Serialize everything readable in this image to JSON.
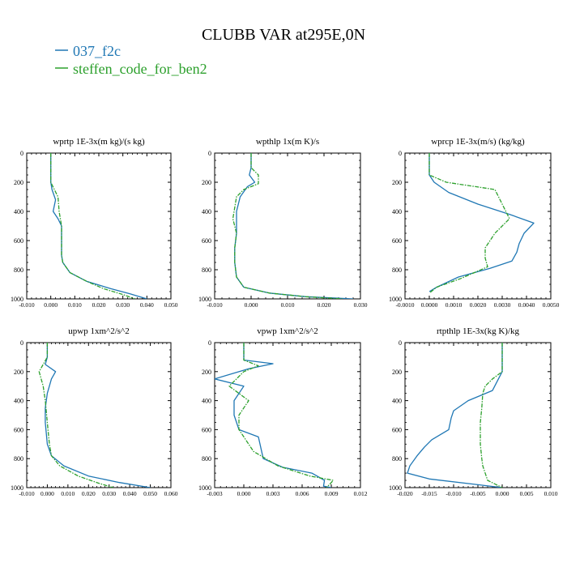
{
  "title": "CLUBB VAR at295E,0N",
  "legend": [
    {
      "name": "037_f2c",
      "color": "#1f77b4"
    },
    {
      "name": "steffen_code_for_ben2",
      "color": "#2ca02c"
    }
  ],
  "chart_data": [
    {
      "type": "line",
      "title": "wprtp   1E-3x(m kg)/(s kg)",
      "xlim": [
        -0.01,
        0.05
      ],
      "ylim": [
        1000,
        0
      ],
      "xticks": [
        "-0.010",
        "0.000",
        "0.010",
        "0.020",
        "0.030",
        "0.040",
        "0.050"
      ],
      "yticks": [
        "0",
        "200",
        "400",
        "600",
        "800",
        "1000"
      ],
      "series": [
        {
          "name": "037_f2c",
          "x": [
            0.0,
            0.0,
            0.0,
            0.0005,
            0.002,
            0.001,
            0.003,
            0.0045,
            0.0045,
            0.0045,
            0.005,
            0.008,
            0.015,
            0.025,
            0.033,
            0.04
          ],
          "y": [
            0,
            100,
            200,
            250,
            320,
            400,
            450,
            500,
            600,
            700,
            750,
            820,
            880,
            930,
            965,
            1000
          ]
        },
        {
          "name": "steffen_code_for_ben2",
          "x": [
            0.0,
            0.0,
            0.0,
            0.0015,
            0.003,
            0.0035,
            0.0045,
            0.0045,
            0.0045,
            0.005,
            0.008,
            0.015,
            0.022,
            0.03,
            0.035
          ],
          "y": [
            0,
            100,
            200,
            250,
            300,
            400,
            500,
            600,
            700,
            750,
            820,
            880,
            930,
            970,
            1000
          ]
        }
      ]
    },
    {
      "type": "line",
      "title": "wpthlp   1x(m K)/s",
      "xlim": [
        -0.01,
        0.03
      ],
      "ylim": [
        1000,
        0
      ],
      "xticks": [
        "-0.010",
        "0.000",
        "0.010",
        "0.020",
        "0.030"
      ],
      "yticks": [
        "0",
        "200",
        "400",
        "600",
        "800",
        "1000"
      ],
      "series": [
        {
          "name": "037_f2c",
          "x": [
            0.0,
            0.0,
            -0.0005,
            0.001,
            -0.001,
            -0.003,
            -0.004,
            -0.004,
            -0.0045,
            -0.0045,
            -0.004,
            -0.002,
            0.005,
            0.015,
            0.028
          ],
          "y": [
            0,
            100,
            150,
            200,
            230,
            300,
            400,
            550,
            650,
            750,
            850,
            920,
            960,
            985,
            1000
          ]
        },
        {
          "name": "steffen_code_for_ben2",
          "x": [
            0.0,
            0.0,
            0.002,
            0.002,
            -0.002,
            -0.004,
            -0.005,
            -0.004,
            -0.0045,
            -0.0045,
            -0.004,
            -0.002,
            0.005,
            0.015,
            0.025
          ],
          "y": [
            0,
            100,
            150,
            210,
            250,
            300,
            450,
            550,
            650,
            750,
            850,
            920,
            960,
            985,
            1000
          ]
        }
      ]
    },
    {
      "type": "line",
      "title": "wprcp   1E-3x(m/s) (kg/kg)",
      "xlim": [
        -0.001,
        0.005
      ],
      "ylim": [
        1000,
        0
      ],
      "xticks": [
        "-0.0010",
        "0.0000",
        "0.0010",
        "0.0020",
        "0.0030",
        "0.0040",
        "0.0050"
      ],
      "yticks": [
        "0",
        "200",
        "400",
        "600",
        "800",
        "1000"
      ],
      "series": [
        {
          "name": "037_f2c",
          "x": [
            0.0,
            0.0,
            0.0002,
            0.0008,
            0.002,
            0.0033,
            0.0043,
            0.0039,
            0.0037,
            0.0036,
            0.0034,
            0.0025,
            0.0012,
            0.0003,
            0.0
          ],
          "y": [
            0,
            150,
            200,
            270,
            350,
            420,
            480,
            550,
            620,
            680,
            740,
            790,
            850,
            920,
            950
          ]
        },
        {
          "name": "steffen_code_for_ben2",
          "x": [
            0.0,
            0.0,
            0.0007,
            0.0027,
            0.003,
            0.0033,
            0.0027,
            0.0023,
            0.0023,
            0.0024,
            0.0013,
            0.0003,
            0.0
          ],
          "y": [
            0,
            150,
            200,
            250,
            350,
            450,
            550,
            650,
            720,
            780,
            860,
            920,
            960
          ]
        }
      ]
    },
    {
      "type": "line",
      "title": "upwp   1xm^2/s^2",
      "xlim": [
        -0.01,
        0.06
      ],
      "ylim": [
        1000,
        0
      ],
      "xticks": [
        "-0.010",
        "0.000",
        "0.010",
        "0.020",
        "0.030",
        "0.040",
        "0.050",
        "0.060"
      ],
      "yticks": [
        "0",
        "200",
        "400",
        "600",
        "800",
        "1000"
      ],
      "series": [
        {
          "name": "037_f2c",
          "x": [
            0.0,
            0.0,
            -0.001,
            0.004,
            0.002,
            0.0,
            -0.001,
            -0.001,
            0.0,
            0.002,
            0.008,
            0.02,
            0.035,
            0.05
          ],
          "y": [
            0,
            100,
            150,
            200,
            250,
            350,
            450,
            550,
            700,
            780,
            850,
            920,
            965,
            1000
          ]
        },
        {
          "name": "steffen_code_for_ben2",
          "x": [
            0.0,
            0.0,
            -0.002,
            -0.004,
            -0.002,
            -0.001,
            0.0,
            0.001,
            0.002,
            0.006,
            0.015,
            0.025,
            0.032
          ],
          "y": [
            0,
            100,
            150,
            200,
            300,
            400,
            550,
            700,
            780,
            850,
            920,
            970,
            1000
          ]
        }
      ]
    },
    {
      "type": "line",
      "title": "vpwp   1xm^2/s^2",
      "xlim": [
        -0.003,
        0.012
      ],
      "ylim": [
        1000,
        0
      ],
      "xticks": [
        "-0.003",
        "0.000",
        "0.003",
        "0.006",
        "0.009",
        "0.012"
      ],
      "yticks": [
        "0",
        "200",
        "400",
        "600",
        "800",
        "1000"
      ],
      "series": [
        {
          "name": "037_f2c",
          "x": [
            0.0,
            0.0,
            0.003,
            0.0005,
            -0.003,
            0.0,
            -0.001,
            -0.001,
            -0.0005,
            0.0015,
            0.002,
            0.004,
            0.007,
            0.0083,
            0.0082,
            0.009
          ],
          "y": [
            0,
            120,
            145,
            180,
            250,
            300,
            400,
            500,
            600,
            650,
            800,
            860,
            900,
            950,
            990,
            1000
          ]
        },
        {
          "name": "steffen_code_for_ben2",
          "x": [
            0.0,
            0.0,
            0.0015,
            0.0,
            -0.0015,
            0.0005,
            -0.0005,
            -0.0005,
            0.001,
            0.0035,
            0.0068,
            0.0092,
            0.0088,
            0.0085
          ],
          "y": [
            0,
            120,
            160,
            200,
            300,
            400,
            500,
            600,
            750,
            850,
            920,
            950,
            980,
            1000
          ]
        }
      ]
    },
    {
      "type": "line",
      "title": "rtpthlp   1E-3x(kg K)/kg",
      "xlim": [
        -0.02,
        0.01
      ],
      "ylim": [
        1000,
        0
      ],
      "xticks": [
        "-0.020",
        "-0.015",
        "-0.010",
        "-0.005",
        "0.000",
        "0.005",
        "0.010"
      ],
      "yticks": [
        "0",
        "200",
        "400",
        "600",
        "800",
        "1000"
      ],
      "series": [
        {
          "name": "037_f2c",
          "x": [
            0.0,
            0.0,
            -0.002,
            -0.007,
            -0.01,
            -0.0105,
            -0.011,
            -0.013,
            -0.0145,
            -0.016,
            -0.0175,
            -0.019,
            -0.0195,
            -0.015,
            -0.005,
            0.0
          ],
          "y": [
            0,
            200,
            330,
            400,
            470,
            520,
            600,
            640,
            670,
            720,
            780,
            850,
            900,
            940,
            980,
            1000
          ]
        },
        {
          "name": "steffen_code_for_ben2",
          "x": [
            0.0,
            0.0,
            -0.002,
            -0.0035,
            -0.004,
            -0.0042,
            -0.0045,
            -0.0045,
            -0.0042,
            -0.004,
            -0.0035,
            -0.003,
            0.0
          ],
          "y": [
            0,
            200,
            250,
            300,
            350,
            450,
            550,
            700,
            800,
            850,
            900,
            950,
            1000
          ]
        }
      ]
    }
  ]
}
